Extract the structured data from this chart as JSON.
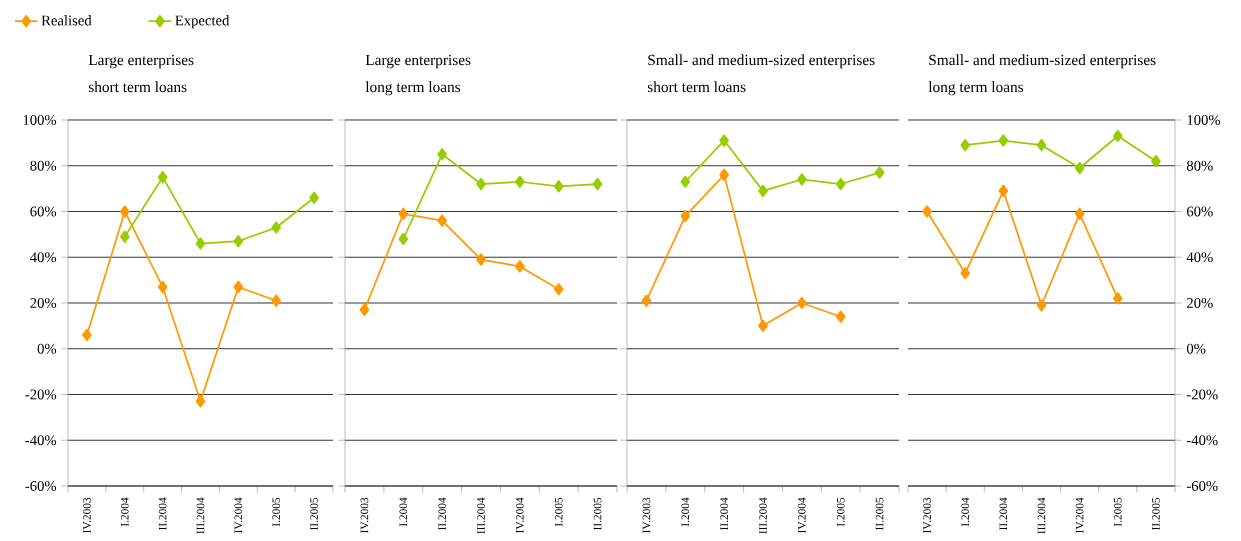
{
  "chart_data": [
    {
      "type": "line",
      "title": "Large enterprises",
      "subtitle": "short term loans",
      "categories": [
        "IV.2003",
        "I.2004",
        "II.2004",
        "III.2004",
        "IV.2004",
        "I.2005",
        "II.2005"
      ],
      "series": [
        {
          "name": "Realised",
          "color": "#ff9900",
          "values": [
            6,
            60,
            27,
            -23,
            27,
            21,
            null
          ]
        },
        {
          "name": "Expected",
          "color": "#99cc00",
          "values": [
            null,
            49,
            75,
            46,
            47,
            53,
            66
          ]
        }
      ],
      "ylim": [
        -60,
        100
      ],
      "yticks": [
        {
          "value": -60,
          "label": "-60%"
        },
        {
          "value": -40,
          "label": "-40%"
        },
        {
          "value": -20,
          "label": "-20%"
        },
        {
          "value": 0,
          "label": "0%"
        },
        {
          "value": 20,
          "label": "20%"
        },
        {
          "value": 40,
          "label": "40%"
        },
        {
          "value": 60,
          "label": "60%"
        },
        {
          "value": 80,
          "label": "80%"
        },
        {
          "value": 100,
          "label": "100%"
        }
      ],
      "grid": "y",
      "legend": "top left",
      "marker": "diamond",
      "line_style": "solid"
    },
    {
      "type": "line",
      "title": "Large enterprises",
      "subtitle": "long term loans",
      "categories": [
        "IV.2003",
        "I.2004",
        "II.2004",
        "III.2004",
        "IV.2004",
        "I.2005",
        "II.2005"
      ],
      "series": [
        {
          "color": "#ff9900",
          "values": [
            17,
            59,
            56,
            39,
            36,
            26,
            null
          ]
        },
        {
          "color": "#99cc00",
          "values": [
            null,
            48,
            85,
            72,
            73,
            71,
            72
          ]
        }
      ],
      "ylim": [
        -60,
        100
      ],
      "yticks": [
        {
          "value": -60,
          "label": null
        },
        {
          "value": -40,
          "label": null
        },
        {
          "value": -20,
          "label": null
        },
        {
          "value": 0,
          "label": null
        },
        {
          "value": 20,
          "label": null
        },
        {
          "value": 40,
          "label": null
        },
        {
          "value": 60,
          "label": null
        },
        {
          "value": 80,
          "label": null
        },
        {
          "value": 100,
          "label": null
        }
      ],
      "grid": "y",
      "tick_labels": "x",
      "marker": "diamond",
      "line_style": "solid"
    },
    {
      "type": "line",
      "title": "Small- and medium-sized enterprises",
      "subtitle": "short term loans",
      "categories": [
        "IV.2003",
        "I.2004",
        "II.2004",
        "III.2004",
        "IV.2004",
        "I.2005",
        "II.2005"
      ],
      "series": [
        {
          "color": "#ff9900",
          "values": [
            21,
            58,
            76,
            10,
            20,
            14,
            null
          ]
        },
        {
          "color": "#99cc00",
          "values": [
            null,
            73,
            91,
            69,
            74,
            72,
            77
          ]
        }
      ],
      "ylim": [
        -60,
        100
      ],
      "yticks": [
        {
          "value": -60,
          "label": null
        },
        {
          "value": -40,
          "label": null
        },
        {
          "value": -20,
          "label": null
        },
        {
          "value": 0,
          "label": null
        },
        {
          "value": 20,
          "label": null
        },
        {
          "value": 40,
          "label": null
        },
        {
          "value": 60,
          "label": null
        },
        {
          "value": 80,
          "label": null
        },
        {
          "value": 100,
          "label": null
        }
      ],
      "grid": "y",
      "tick_labels": "x",
      "marker": "diamond",
      "line_style": "solid"
    },
    {
      "type": "line",
      "title": "Small- and medium-sized enterprises",
      "subtitle": "long term loans",
      "categories": [
        "IV.2003",
        "I.2004",
        "II.2004",
        "III.2004",
        "IV.2004",
        "I.2005",
        "II.2005"
      ],
      "series": [
        {
          "color": "#ff9900",
          "axis": "y2",
          "values": [
            60,
            33,
            69,
            19,
            59,
            22,
            null
          ]
        },
        {
          "color": "#99cc00",
          "axis": "y2",
          "values": [
            null,
            89,
            91,
            89,
            79,
            93,
            82
          ]
        }
      ],
      "y2lim": [
        -60,
        100
      ],
      "y2ticks": [
        {
          "value": -60,
          "label": "-60%"
        },
        {
          "value": -40,
          "label": "-40%"
        },
        {
          "value": -20,
          "label": "-20%"
        },
        {
          "value": 0,
          "label": "0%"
        },
        {
          "value": 20,
          "label": "20%"
        },
        {
          "value": 40,
          "label": "40%"
        },
        {
          "value": 60,
          "label": "60%"
        },
        {
          "value": 80,
          "label": "80%"
        },
        {
          "value": 100,
          "label": "100%"
        }
      ],
      "grid": "y",
      "marker": "diamond",
      "line_style": "solid"
    }
  ]
}
